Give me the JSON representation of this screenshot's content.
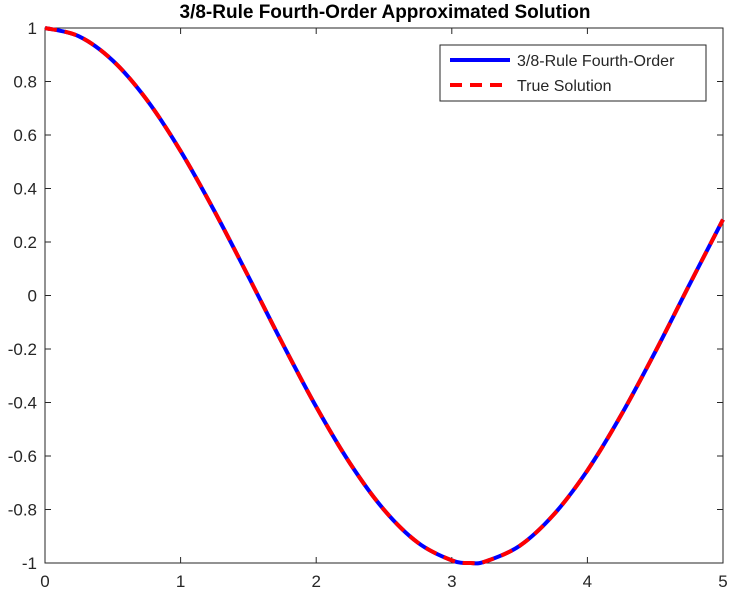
{
  "chart_data": {
    "type": "line",
    "title": "3/8-Rule Fourth-Order Approximated Solution",
    "xlabel": "",
    "ylabel": "",
    "xlim": [
      0,
      5
    ],
    "ylim": [
      -1,
      1
    ],
    "xticks": [
      "0",
      "1",
      "2",
      "3",
      "4",
      "5"
    ],
    "yticks": [
      "1",
      "0.8",
      "0.6",
      "0.4",
      "0.2",
      "0",
      "-0.2",
      "-0.4",
      "-0.6",
      "-0.8",
      "-1"
    ],
    "grid": false,
    "legend_position": "top-right",
    "x": [
      0,
      0.25,
      0.5,
      0.75,
      1.0,
      1.25,
      1.5,
      1.75,
      2.0,
      2.25,
      2.5,
      2.75,
      3.0,
      3.14,
      3.25,
      3.5,
      3.75,
      4.0,
      4.25,
      4.5,
      4.75,
      5.0
    ],
    "series": [
      {
        "name": "3/8-Rule Fourth-Order",
        "color": "#0000ff",
        "style": "solid",
        "values": [
          1.0,
          0.969,
          0.878,
          0.732,
          0.54,
          0.315,
          0.071,
          -0.178,
          -0.416,
          -0.628,
          -0.801,
          -0.924,
          -0.99,
          -1.0,
          -0.994,
          -0.936,
          -0.82,
          -0.654,
          -0.446,
          -0.211,
          0.038,
          0.284
        ]
      },
      {
        "name": "True Solution",
        "color": "#ff0000",
        "style": "dashed",
        "values": [
          1.0,
          0.969,
          0.878,
          0.732,
          0.54,
          0.315,
          0.071,
          -0.178,
          -0.416,
          -0.628,
          -0.801,
          -0.924,
          -0.99,
          -1.0,
          -0.994,
          -0.936,
          -0.82,
          -0.654,
          -0.446,
          -0.211,
          0.038,
          0.284
        ]
      }
    ]
  }
}
